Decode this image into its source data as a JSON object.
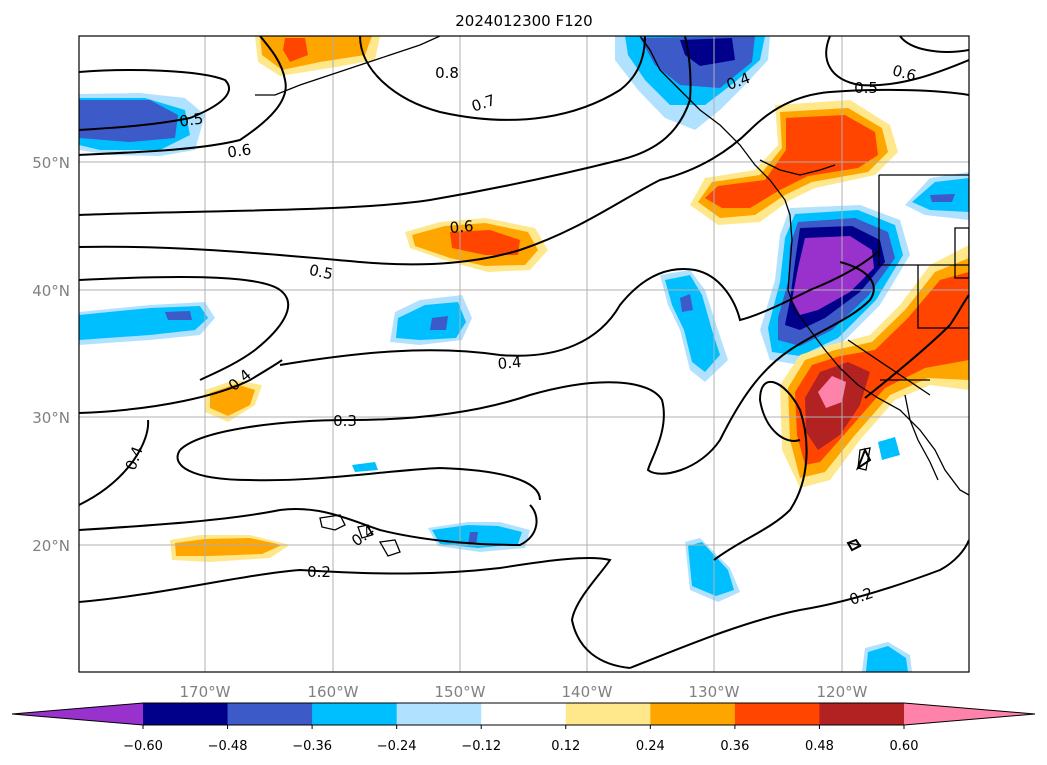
{
  "title": "2024012300 F120",
  "axes": {
    "x_ticks": [
      "170°W",
      "160°W",
      "150°W",
      "140°W",
      "130°W",
      "120°W"
    ],
    "y_ticks": [
      "50°N",
      "40°N",
      "30°N",
      "20°N"
    ]
  },
  "contour_labels": [
    "0.8",
    "0.7",
    "0.4",
    "0.6",
    "0.5",
    "0.5",
    "0.6",
    "0.6",
    "0.5",
    "0.4",
    "0.4",
    "0.3",
    "0.4",
    "0.4",
    "0.2",
    "0.2"
  ],
  "colorbar": {
    "ticks": [
      "−0.60",
      "−0.48",
      "−0.36",
      "−0.24",
      "−0.12",
      "0.12",
      "0.24",
      "0.36",
      "0.48",
      "0.60"
    ],
    "colors": [
      "#9932cc",
      "#00008b",
      "#3c5ac8",
      "#00bfff",
      "#b0e2ff",
      "#ffffff",
      "#ffe88c",
      "#ffa500",
      "#ff4500",
      "#b22222",
      "#ff82ab"
    ]
  }
}
